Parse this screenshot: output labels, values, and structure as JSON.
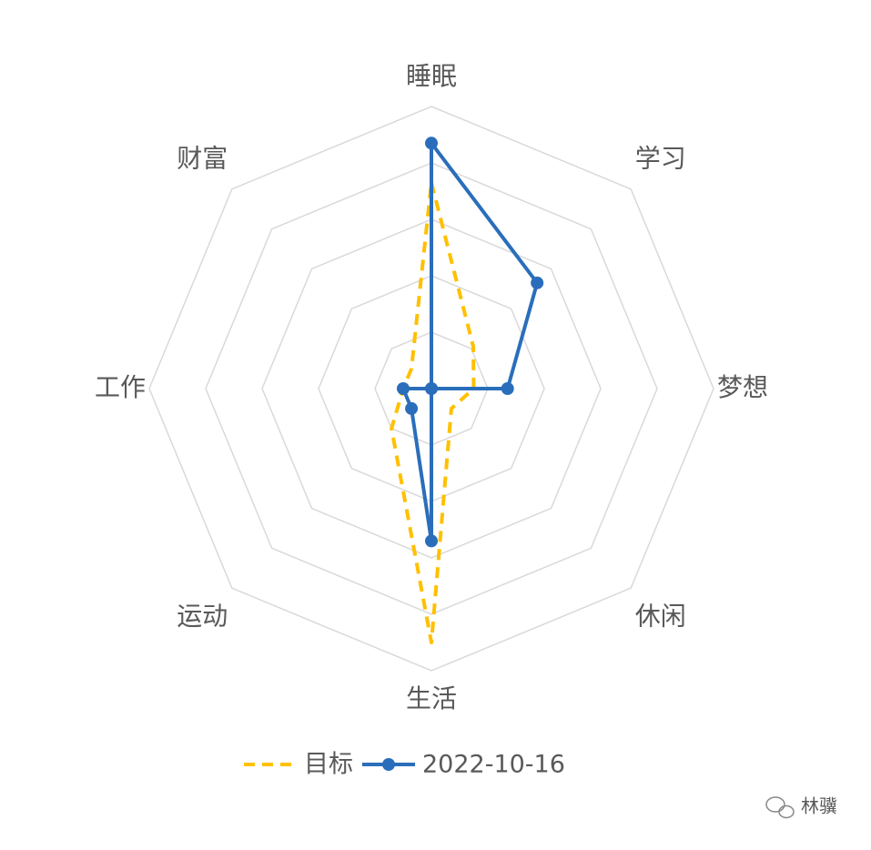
{
  "chart_data": {
    "type": "radar",
    "categories": [
      "睡眠",
      "学习",
      "梦想",
      "休闲",
      "生活",
      "运动",
      "工作",
      "财富"
    ],
    "series": [
      {
        "name": "目标",
        "color": "#FFC000",
        "dashed": true,
        "markers": false,
        "values": [
          7.3,
          2.1,
          1.5,
          1,
          9,
          2,
          1,
          1
        ]
      },
      {
        "name": "2022-10-16",
        "color": "#2A6EBB",
        "dashed": false,
        "markers": true,
        "values": [
          8.7,
          5.3,
          2.7,
          0,
          5.4,
          1,
          1,
          0
        ]
      }
    ],
    "rlim": [
      0,
      10
    ],
    "rticks": [
      2,
      4,
      6,
      8,
      10
    ],
    "grid": true,
    "legend": "bottom"
  },
  "watermark": "林骥"
}
